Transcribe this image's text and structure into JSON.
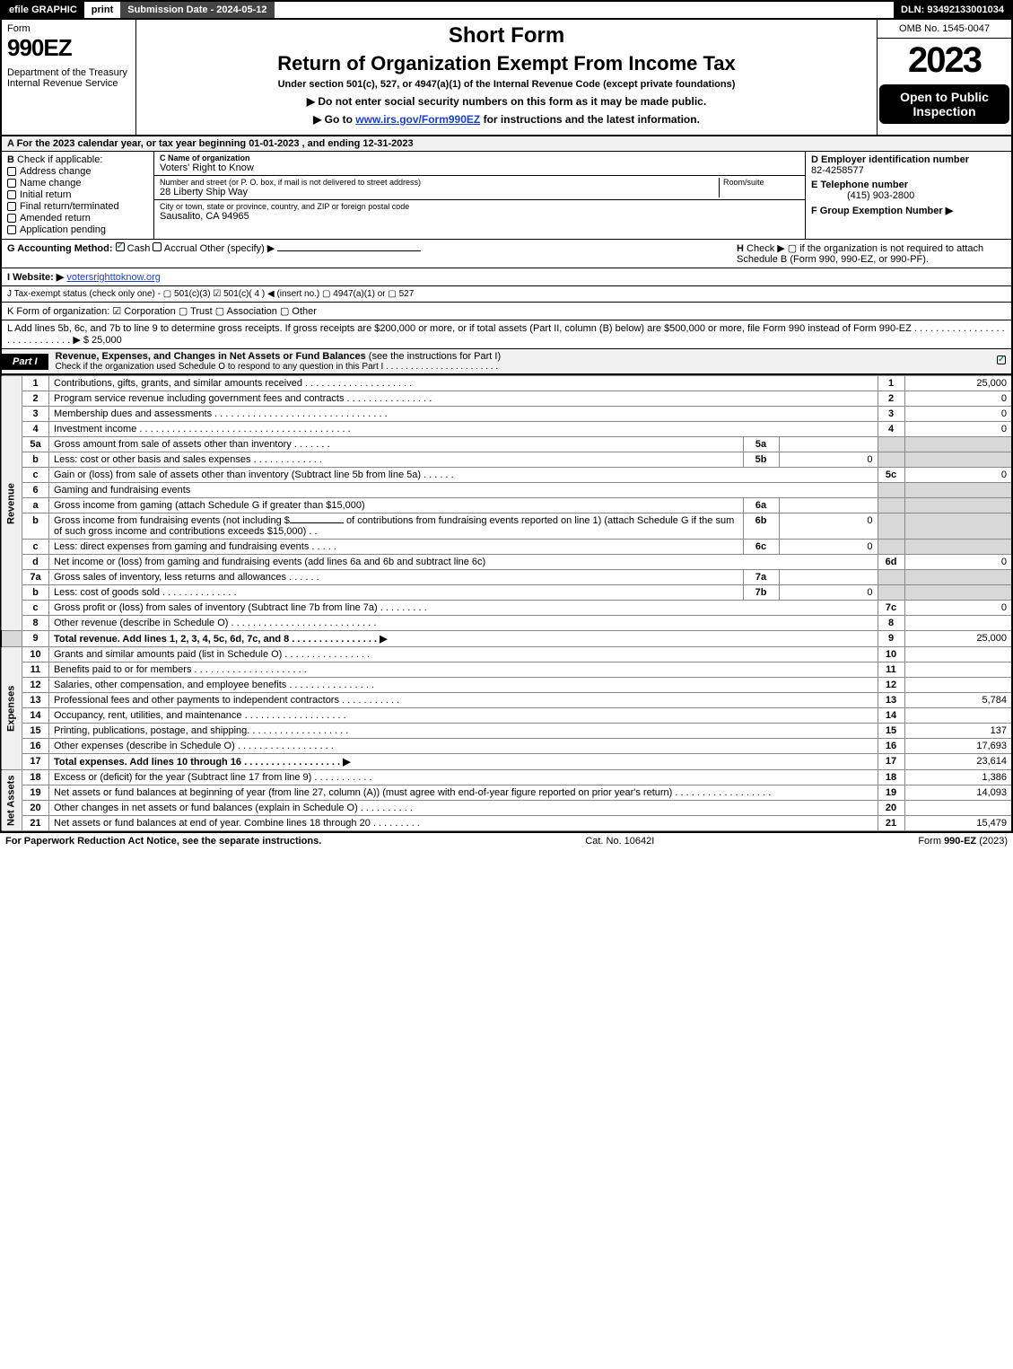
{
  "topbar": {
    "efile": "efile GRAPHIC",
    "print": "print",
    "submission_label": "Submission Date - 2024-05-12",
    "dln": "DLN: 93492133001034"
  },
  "header": {
    "form_word": "Form",
    "form_number": "990EZ",
    "dept": "Department of the Treasury\nInternal Revenue Service",
    "short_form": "Short Form",
    "return_title": "Return of Organization Exempt From Income Tax",
    "subtitle": "Under section 501(c), 527, or 4947(a)(1) of the Internal Revenue Code (except private foundations)",
    "ssn_line": "▶ Do not enter social security numbers on this form as it may be made public.",
    "goto_line_pre": "▶ Go to ",
    "goto_link": "www.irs.gov/Form990EZ",
    "goto_line_post": " for instructions and the latest information.",
    "omb": "OMB No. 1545-0047",
    "year": "2023",
    "open_public": "Open to Public Inspection"
  },
  "line_a": "A  For the 2023 calendar year, or tax year beginning 01-01-2023 , and ending 12-31-2023",
  "section_b": {
    "label": "B",
    "check_if": "Check if applicable:",
    "items": [
      {
        "label": "Address change",
        "checked": false
      },
      {
        "label": "Name change",
        "checked": false
      },
      {
        "label": "Initial return",
        "checked": false
      },
      {
        "label": "Final return/terminated",
        "checked": false
      },
      {
        "label": "Amended return",
        "checked": false
      },
      {
        "label": "Application pending",
        "checked": false
      }
    ]
  },
  "section_c": {
    "name_label": "C Name of organization",
    "name": "Voters' Right to Know",
    "street_label": "Number and street (or P. O. box, if mail is not delivered to street address)",
    "room_label": "Room/suite",
    "street": "28 Liberty Ship Way",
    "city_label": "City or town, state or province, country, and ZIP or foreign postal code",
    "city": "Sausalito, CA  94965"
  },
  "section_d": {
    "ein_label": "D Employer identification number",
    "ein": "82-4258577",
    "tel_label": "E Telephone number",
    "tel": "(415) 903-2800",
    "group_label": "F Group Exemption Number   ▶"
  },
  "section_g": {
    "label": "G Accounting Method:",
    "cash": "Cash",
    "accrual": "Accrual",
    "other": "Other (specify) ▶"
  },
  "section_h": {
    "label": "H",
    "text": "Check ▶  ▢  if the organization is not required to attach Schedule B (Form 990, 990-EZ, or 990-PF)."
  },
  "section_i": {
    "label": "I Website: ▶",
    "url": "votersrighttoknow.org"
  },
  "section_j": "J Tax-exempt status (check only one) - ▢ 501(c)(3)  ☑ 501(c)( 4 ) ◀ (insert no.) ▢ 4947(a)(1) or ▢ 527",
  "section_k": "K Form of organization:  ☑ Corporation  ▢ Trust  ▢ Association  ▢ Other",
  "section_l": {
    "text": "L Add lines 5b, 6c, and 7b to line 9 to determine gross receipts. If gross receipts are $200,000 or more, or if total assets (Part II, column (B) below) are $500,000 or more, file Form 990 instead of Form 990-EZ . . . . . . . . . . . . . . . . . . . . . . . . . . . . . ▶ $",
    "amount": "25,000"
  },
  "part1": {
    "label": "Part I",
    "title": "Revenue, Expenses, and Changes in Net Assets or Fund Balances",
    "title_paren": " (see the instructions for Part I)",
    "subtitle": "Check if the organization used Schedule O to respond to any question in this Part I . . . . . . . . . . . . . . . . . . . . . . .",
    "checked": true
  },
  "revenue_label": "Revenue",
  "expenses_label": "Expenses",
  "netassets_label": "Net Assets",
  "lines": {
    "1": {
      "num": "1",
      "desc": "Contributions, gifts, grants, and similar amounts received . . . . . . . . . . . . . . . . . . . .",
      "col": "1",
      "val": "25,000"
    },
    "2": {
      "num": "2",
      "desc": "Program service revenue including government fees and contracts . . . . . . . . . . . . . . . .",
      "col": "2",
      "val": "0"
    },
    "3": {
      "num": "3",
      "desc": "Membership dues and assessments . . . . . . . . . . . . . . . . . . . . . . . . . . . . . . . .",
      "col": "3",
      "val": "0"
    },
    "4": {
      "num": "4",
      "desc": "Investment income . . . . . . . . . . . . . . . . . . . . . . . . . . . . . . . . . . . . . . .",
      "col": "4",
      "val": "0"
    },
    "5a": {
      "num": "5a",
      "desc": "Gross amount from sale of assets other than inventory . . . . . . .",
      "sub": "5a",
      "subval": ""
    },
    "5b": {
      "num": "b",
      "desc": "Less: cost or other basis and sales expenses . . . . . . . . . . . . .",
      "sub": "5b",
      "subval": "0"
    },
    "5c": {
      "num": "c",
      "desc": "Gain or (loss) from sale of assets other than inventory (Subtract line 5b from line 5a) . . . . . .",
      "col": "5c",
      "val": "0"
    },
    "6": {
      "num": "6",
      "desc": "Gaming and fundraising events"
    },
    "6a": {
      "num": "a",
      "desc": "Gross income from gaming (attach Schedule G if greater than $15,000)",
      "sub": "6a",
      "subval": ""
    },
    "6b": {
      "num": "b",
      "desc_pre": "Gross income from fundraising events (not including $",
      "desc_mid": " of contributions from fundraising events reported on line 1) (attach Schedule G if the sum of such gross income and contributions exceeds $15,000)  .  .",
      "sub": "6b",
      "subval": "0"
    },
    "6c": {
      "num": "c",
      "desc": "Less: direct expenses from gaming and fundraising events  . . . . .",
      "sub": "6c",
      "subval": "0"
    },
    "6d": {
      "num": "d",
      "desc": "Net income or (loss) from gaming and fundraising events (add lines 6a and 6b and subtract line 6c)",
      "col": "6d",
      "val": "0"
    },
    "7a": {
      "num": "7a",
      "desc": "Gross sales of inventory, less returns and allowances . . . . . .",
      "sub": "7a",
      "subval": ""
    },
    "7b": {
      "num": "b",
      "desc": "Less: cost of goods sold    .   .   .   .   .   .   .   .   .   .   .   .   .   .",
      "sub": "7b",
      "subval": "0"
    },
    "7c": {
      "num": "c",
      "desc": "Gross profit or (loss) from sales of inventory (Subtract line 7b from line 7a) . . . . . . . . .",
      "col": "7c",
      "val": "0"
    },
    "8": {
      "num": "8",
      "desc": "Other revenue (describe in Schedule O) . . . . . . . . . . . . . . . . . . . . . . . . . . .",
      "col": "8",
      "val": ""
    },
    "9": {
      "num": "9",
      "desc": "Total revenue. Add lines 1, 2, 3, 4, 5c, 6d, 7c, and 8   .   .   .   .   .   .   .   .   .   .   .   .   .   .   .   . ▶",
      "col": "9",
      "val": "25,000",
      "bold": true
    },
    "10": {
      "num": "10",
      "desc": "Grants and similar amounts paid (list in Schedule O) .   .   .   .   .   .   .   .   .   .   .   .   .   .   .   .",
      "col": "10",
      "val": ""
    },
    "11": {
      "num": "11",
      "desc": "Benefits paid to or for members     .   .   .   .   .   .   .   .   .   .   .   .   .   .   .   .   .   .   .   .   .",
      "col": "11",
      "val": ""
    },
    "12": {
      "num": "12",
      "desc": "Salaries, other compensation, and employee benefits .   .   .   .   .   .   .   .   .   .   .   .   .   .   .   .",
      "col": "12",
      "val": ""
    },
    "13": {
      "num": "13",
      "desc": "Professional fees and other payments to independent contractors  .   .   .   .   .   .   .   .   .   .   .",
      "col": "13",
      "val": "5,784"
    },
    "14": {
      "num": "14",
      "desc": "Occupancy, rent, utilities, and maintenance .   .   .   .   .   .   .   .   .   .   .   .   .   .   .   .   .   .   .",
      "col": "14",
      "val": ""
    },
    "15": {
      "num": "15",
      "desc": "Printing, publications, postage, and shipping.   .   .   .   .   .   .   .   .   .   .   .   .   .   .   .   .   .   .",
      "col": "15",
      "val": "137"
    },
    "16": {
      "num": "16",
      "desc": "Other expenses (describe in Schedule O)     .   .   .   .   .   .   .   .   .   .   .   .   .   .   .   .   .   .",
      "col": "16",
      "val": "17,693"
    },
    "17": {
      "num": "17",
      "desc": "Total expenses. Add lines 10 through 16     .   .   .   .   .   .   .   .   .   .   .   .   .   .   .   .   .   . ▶",
      "col": "17",
      "val": "23,614",
      "bold": true
    },
    "18": {
      "num": "18",
      "desc": "Excess or (deficit) for the year (Subtract line 17 from line 9)      .   .   .   .   .   .   .   .   .   .   .",
      "col": "18",
      "val": "1,386"
    },
    "19": {
      "num": "19",
      "desc": "Net assets or fund balances at beginning of year (from line 27, column (A)) (must agree with end-of-year figure reported on prior year's return) .   .   .   .   .   .   .   .   .   .   .   .   .   .   .   .   .   .",
      "col": "19",
      "val": "14,093"
    },
    "20": {
      "num": "20",
      "desc": "Other changes in net assets or fund balances (explain in Schedule O) .   .   .   .   .   .   .   .   .   .",
      "col": "20",
      "val": ""
    },
    "21": {
      "num": "21",
      "desc": "Net assets or fund balances at end of year. Combine lines 18 through 20 .   .   .   .   .   .   .   .   .",
      "col": "21",
      "val": "15,479"
    }
  },
  "footer": {
    "left": "For Paperwork Reduction Act Notice, see the separate instructions.",
    "mid": "Cat. No. 10642I",
    "right_pre": "Form ",
    "right_form": "990-EZ",
    "right_post": " (2023)"
  }
}
